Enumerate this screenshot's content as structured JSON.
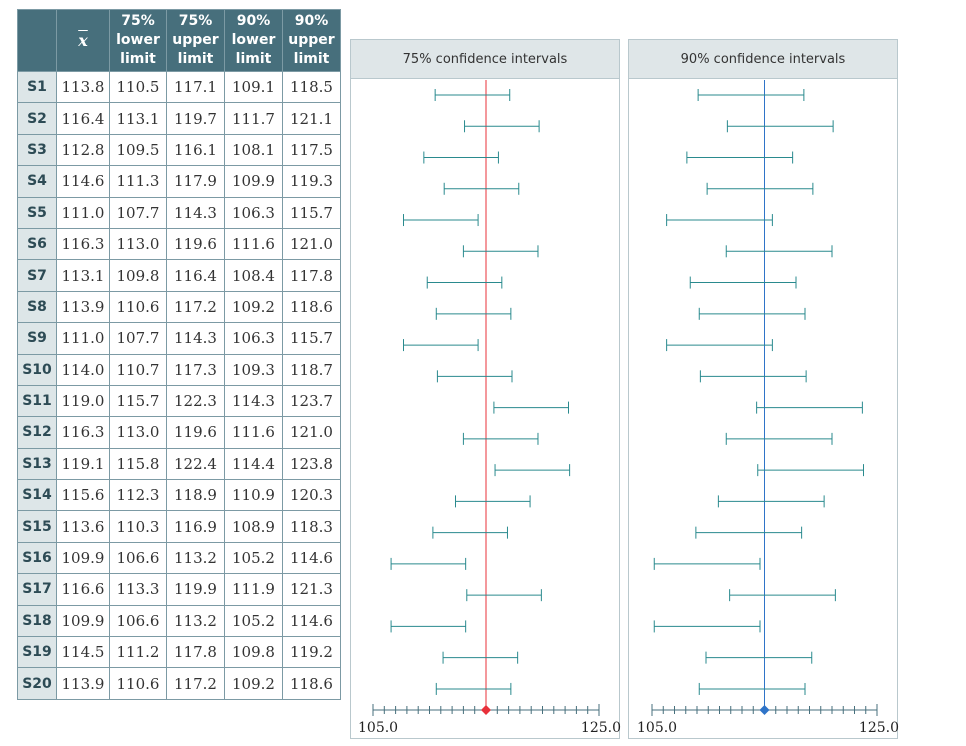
{
  "table": {
    "headers": [
      "",
      "x",
      "75% lower limit",
      "75% upper limit",
      "90% lower limit",
      "90% upper limit"
    ],
    "header_lines": [
      [
        "75%",
        "lower",
        "limit"
      ],
      [
        "75%",
        "upper",
        "limit"
      ],
      [
        "90%",
        "lower",
        "limit"
      ],
      [
        "90%",
        "upper",
        "limit"
      ]
    ],
    "rows": [
      [
        "S1",
        "113.8",
        "110.5",
        "117.1",
        "109.1",
        "118.5"
      ],
      [
        "S2",
        "116.4",
        "113.1",
        "119.7",
        "111.7",
        "121.1"
      ],
      [
        "S3",
        "112.8",
        "109.5",
        "116.1",
        "108.1",
        "117.5"
      ],
      [
        "S4",
        "114.6",
        "111.3",
        "117.9",
        "109.9",
        "119.3"
      ],
      [
        "S5",
        "111.0",
        "107.7",
        "114.3",
        "106.3",
        "115.7"
      ],
      [
        "S6",
        "116.3",
        "113.0",
        "119.6",
        "111.6",
        "121.0"
      ],
      [
        "S7",
        "113.1",
        "109.8",
        "116.4",
        "108.4",
        "117.8"
      ],
      [
        "S8",
        "113.9",
        "110.6",
        "117.2",
        "109.2",
        "118.6"
      ],
      [
        "S9",
        "111.0",
        "107.7",
        "114.3",
        "106.3",
        "115.7"
      ],
      [
        "S10",
        "114.0",
        "110.7",
        "117.3",
        "109.3",
        "118.7"
      ],
      [
        "S11",
        "119.0",
        "115.7",
        "122.3",
        "114.3",
        "123.7"
      ],
      [
        "S12",
        "116.3",
        "113.0",
        "119.6",
        "111.6",
        "121.0"
      ],
      [
        "S13",
        "119.1",
        "115.8",
        "122.4",
        "114.4",
        "123.8"
      ],
      [
        "S14",
        "115.6",
        "112.3",
        "118.9",
        "110.9",
        "120.3"
      ],
      [
        "S15",
        "113.6",
        "110.3",
        "116.9",
        "108.9",
        "118.3"
      ],
      [
        "S16",
        "109.9",
        "106.6",
        "113.2",
        "105.2",
        "114.6"
      ],
      [
        "S17",
        "116.6",
        "113.3",
        "119.9",
        "111.9",
        "121.3"
      ],
      [
        "S18",
        "109.9",
        "106.6",
        "113.2",
        "105.2",
        "114.6"
      ],
      [
        "S19",
        "114.5",
        "111.2",
        "117.8",
        "109.8",
        "119.2"
      ],
      [
        "S20",
        "113.9",
        "110.6",
        "117.2",
        "109.2",
        "118.6"
      ]
    ]
  },
  "panels": [
    {
      "title": "75% confidence intervals",
      "lower_col": 2,
      "upper_col": 3,
      "mean_color": "#e8303a"
    },
    {
      "title": "90% confidence intervals",
      "lower_col": 4,
      "upper_col": 5,
      "mean_color": "#2f74c8"
    }
  ],
  "axis": {
    "min": 105,
    "max": 125,
    "step": 1,
    "min_label": "105.0",
    "max_label": "125.0",
    "population_mean": 115
  },
  "colors": {
    "interval": "#2a8a8e",
    "axis": "#476f7c",
    "header_bg": "#476f7c"
  }
}
